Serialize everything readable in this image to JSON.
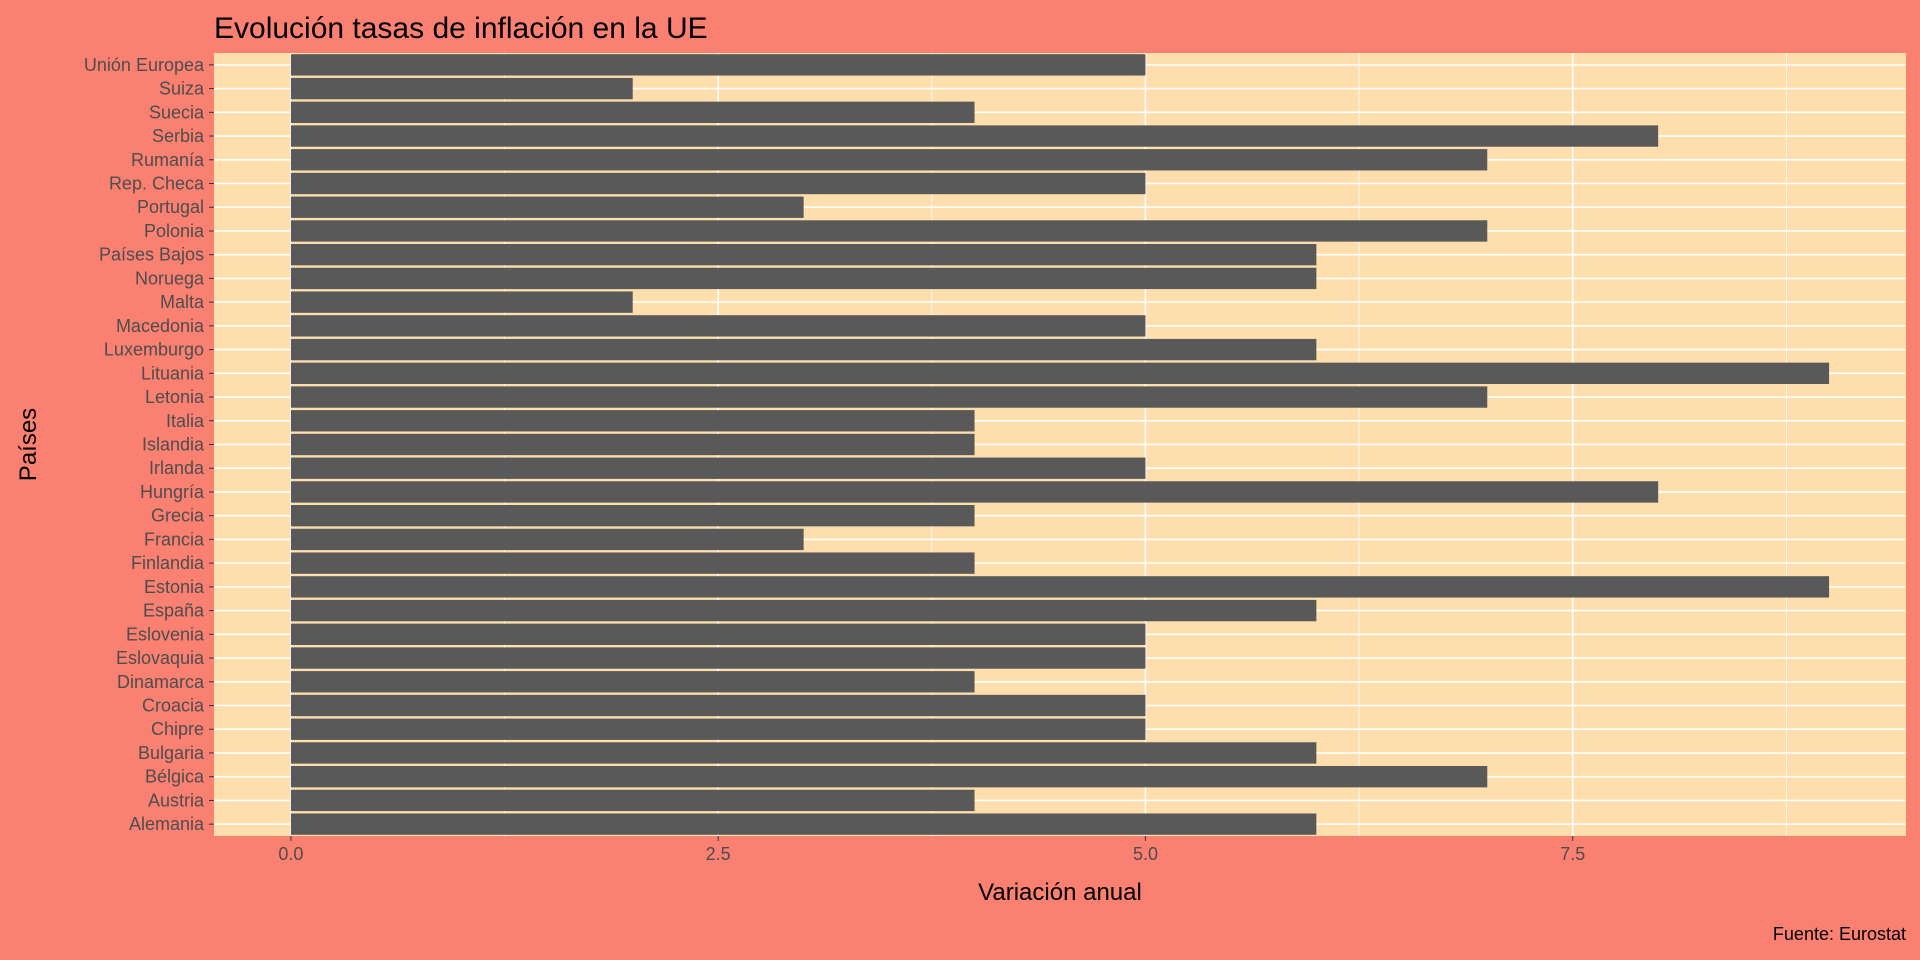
{
  "colors": {
    "page_background": "#fa8072",
    "panel_background": "#ffdead",
    "bar_fill": "#595959",
    "grid": "#ffffff",
    "tick_text": "#4d4d4d",
    "title_text": "#000000"
  },
  "chart_data": {
    "type": "bar",
    "orientation": "horizontal",
    "title": "Evolución tasas de inflación en la UE",
    "xlabel": "Variación anual",
    "ylabel": "Países",
    "caption": "Fuente: Eurostat",
    "categories": [
      "Alemania",
      "Austria",
      "Bélgica",
      "Bulgaria",
      "Chipre",
      "Croacia",
      "Dinamarca",
      "Eslovaquia",
      "Eslovenia",
      "España",
      "Estonia",
      "Finlandia",
      "Francia",
      "Grecia",
      "Hungría",
      "Irlanda",
      "Islandia",
      "Italia",
      "Letonia",
      "Lituania",
      "Luxemburgo",
      "Macedonia",
      "Malta",
      "Noruega",
      "Países Bajos",
      "Polonia",
      "Portugal",
      "Rep. Checa",
      "Rumanía",
      "Serbia",
      "Suecia",
      "Suiza",
      "Unión Europea"
    ],
    "values": [
      6,
      4,
      7,
      6,
      5,
      5,
      4,
      5,
      5,
      6,
      9,
      4,
      3,
      4,
      8,
      5,
      4,
      4,
      7,
      9,
      6,
      5,
      2,
      6,
      6,
      7,
      3,
      5,
      7,
      8,
      4,
      2,
      5
    ],
    "xlim": [
      -0.45,
      9.45
    ],
    "x_ticks": [
      0.0,
      2.5,
      5.0,
      7.5
    ],
    "x_tick_labels": [
      "0.0",
      "2.5",
      "5.0",
      "7.5"
    ],
    "grid": true,
    "legend": "none"
  }
}
